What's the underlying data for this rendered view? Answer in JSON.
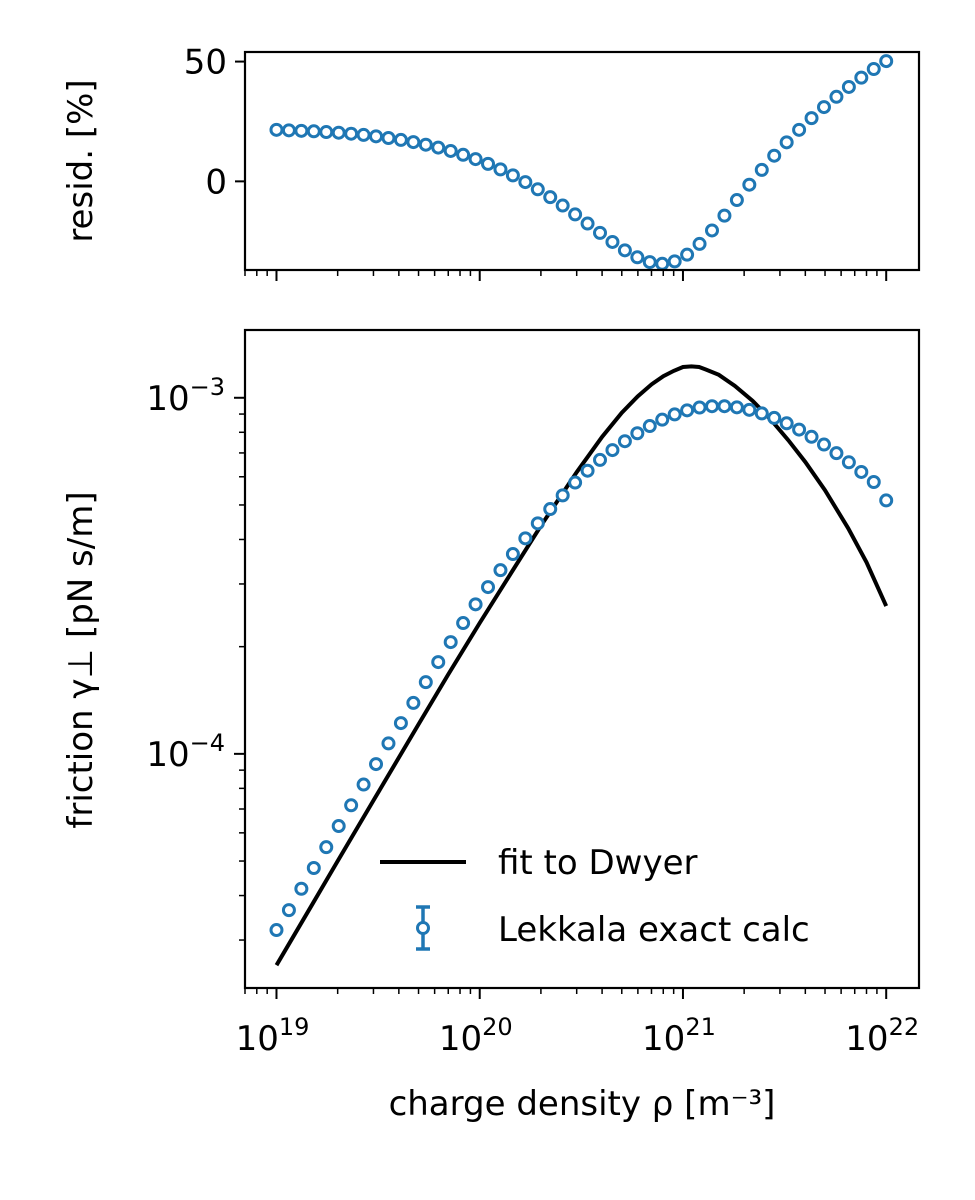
{
  "chart_data": [
    {
      "type": "scatter",
      "panel": "residuals",
      "xscale": "log",
      "ylabel": "resid. [%]",
      "xlim": [
        7e+18,
        1.45e+22
      ],
      "ylim": [
        -37,
        54
      ],
      "yticks": [
        {
          "value": 50,
          "label": "50"
        },
        {
          "value": 0,
          "label": "0"
        }
      ],
      "x_tick_labels_shown": false,
      "series": [
        {
          "color": "#1f77b4",
          "marker": "open-circle",
          "x": [
            1e+19,
            1.1514e+19,
            1.3257e+19,
            1.5264e+19,
            1.7575e+19,
            2.0236e+19,
            2.33e+19,
            2.6827e+19,
            3.0888e+19,
            3.5565e+19,
            4.0949e+19,
            4.7149e+19,
            5.4287e+19,
            6.2506e+19,
            7.1969e+19,
            8.2864e+19,
            9.541e+19,
            1.0985e+20,
            1.2649e+20,
            1.4563e+20,
            1.6768e+20,
            1.9307e+20,
            2.223e+20,
            2.5595e+20,
            2.9471e+20,
            3.3932e+20,
            3.9069e+20,
            4.4984e+20,
            5.1795e+20,
            5.9636e+20,
            6.8665e+20,
            7.906e+20,
            9.103e+20,
            1.0481e+21,
            1.2068e+21,
            1.3895e+21,
            1.5999e+21,
            1.8421e+21,
            2.121e+21,
            2.4421e+21,
            2.8118e+21,
            3.2375e+21,
            3.7276e+21,
            4.2919e+21,
            4.9417e+21,
            5.6899e+21,
            6.5513e+21,
            7.5431e+21,
            8.6851e+21,
            1e+22
          ],
          "y": [
            21.5,
            21.3,
            21.1,
            20.9,
            20.6,
            20.3,
            19.9,
            19.4,
            18.8,
            18.1,
            17.3,
            16.4,
            15.3,
            14.1,
            12.7,
            11.1,
            9.3,
            7.3,
            5.0,
            2.5,
            -0.3,
            -3.3,
            -6.6,
            -10.1,
            -13.8,
            -17.6,
            -21.5,
            -25.3,
            -28.8,
            -31.7,
            -33.7,
            -34.4,
            -33.4,
            -30.6,
            -26.1,
            -20.5,
            -14.3,
            -7.8,
            -1.4,
            4.8,
            10.7,
            16.3,
            21.5,
            26.4,
            31.0,
            35.3,
            39.4,
            43.3,
            46.9,
            50.2
          ]
        }
      ]
    },
    {
      "type": "line",
      "panel": "main",
      "xscale": "log",
      "yscale": "log",
      "xlabel": "charge density ρ [m⁻³]",
      "ylabel": "friction γ⊥ [pN s/m]",
      "xlim": [
        7e+18,
        1.45e+22
      ],
      "ylim": [
        2.2e-05,
        0.00155
      ],
      "xticks": [
        {
          "value": 1e+19,
          "base": "10",
          "exp": "19"
        },
        {
          "value": 1e+20,
          "base": "10",
          "exp": "20"
        },
        {
          "value": 1e+21,
          "base": "10",
          "exp": "21"
        },
        {
          "value": 1e+22,
          "base": "10",
          "exp": "22"
        }
      ],
      "yticks": [
        {
          "value": 0.001,
          "base": "10",
          "exp": "−3"
        },
        {
          "value": 0.0001,
          "base": "10",
          "exp": "−4"
        }
      ],
      "legend_position": "lower-right",
      "series": [
        {
          "name": "fit to Dwyer",
          "color": "#000000",
          "style": "line",
          "x": [
            1e+19,
            1.5e+19,
            2e+19,
            3e+19,
            5e+19,
            7e+19,
            1e+20,
            1.5e+20,
            2e+20,
            3e+20,
            4e+20,
            5e+20,
            6e+20,
            7e+20,
            8e+20,
            9e+20,
            1e+21,
            1.1e+21,
            1.2e+21,
            1.3e+21,
            1.5e+21,
            1.8e+21,
            2.2e+21,
            2.7e+21,
            3.3e+21,
            4e+21,
            5e+21,
            6.5e+21,
            8e+21,
            1e+22
          ],
          "y": [
            2.55e-05,
            3.78e-05,
            5e-05,
            7.4e-05,
            0.000121,
            0.000167,
            0.000233,
            0.000337,
            0.000437,
            0.000618,
            0.000777,
            0.000908,
            0.00101,
            0.00109,
            0.00115,
            0.00119,
            0.00122,
            0.001225,
            0.00122,
            0.0012,
            0.00116,
            0.00108,
            0.00098,
            0.00087,
            0.00076,
            0.00066,
            0.00055,
            0.00043,
            0.000345,
            0.00026
          ]
        },
        {
          "name": "Lekkala exact calc",
          "color": "#1f77b4",
          "style": "open-circle",
          "x": [
            1e+19,
            1.1514e+19,
            1.3257e+19,
            1.5264e+19,
            1.7575e+19,
            2.0236e+19,
            2.33e+19,
            2.6827e+19,
            3.0888e+19,
            3.5565e+19,
            4.0949e+19,
            4.7149e+19,
            5.4287e+19,
            6.2506e+19,
            7.1969e+19,
            8.2864e+19,
            9.541e+19,
            1.0985e+20,
            1.2649e+20,
            1.4563e+20,
            1.6768e+20,
            1.9307e+20,
            2.223e+20,
            2.5595e+20,
            2.9471e+20,
            3.3932e+20,
            3.9069e+20,
            4.4984e+20,
            5.1795e+20,
            5.9636e+20,
            6.8665e+20,
            7.906e+20,
            9.103e+20,
            1.0481e+21,
            1.2068e+21,
            1.3895e+21,
            1.5999e+21,
            1.8421e+21,
            2.121e+21,
            2.4421e+21,
            2.8118e+21,
            3.2375e+21,
            3.7276e+21,
            4.2919e+21,
            4.9417e+21,
            5.6899e+21,
            6.5513e+21,
            7.5431e+21,
            8.6851e+21,
            1e+22
          ],
          "y": [
            3.2e-05,
            3.64e-05,
            4.18e-05,
            4.78e-05,
            5.47e-05,
            6.27e-05,
            7.17e-05,
            8.2e-05,
            9.36e-05,
            0.000107,
            0.000122,
            0.000139,
            0.000159,
            0.000181,
            0.000206,
            0.000233,
            0.000263,
            0.000294,
            0.000328,
            0.000364,
            0.000403,
            0.000444,
            0.000487,
            0.000532,
            0.000578,
            0.000624,
            0.000669,
            0.000713,
            0.000755,
            0.000795,
            0.000833,
            0.000868,
            0.000898,
            0.000922,
            0.000939,
            0.000947,
            0.000947,
            0.00094,
            0.000925,
            0.000904,
            0.000878,
            0.000848,
            0.000814,
            0.000777,
            0.000739,
            0.000699,
            0.000659,
            0.000619,
            0.00058,
            0.000515
          ]
        }
      ]
    }
  ]
}
